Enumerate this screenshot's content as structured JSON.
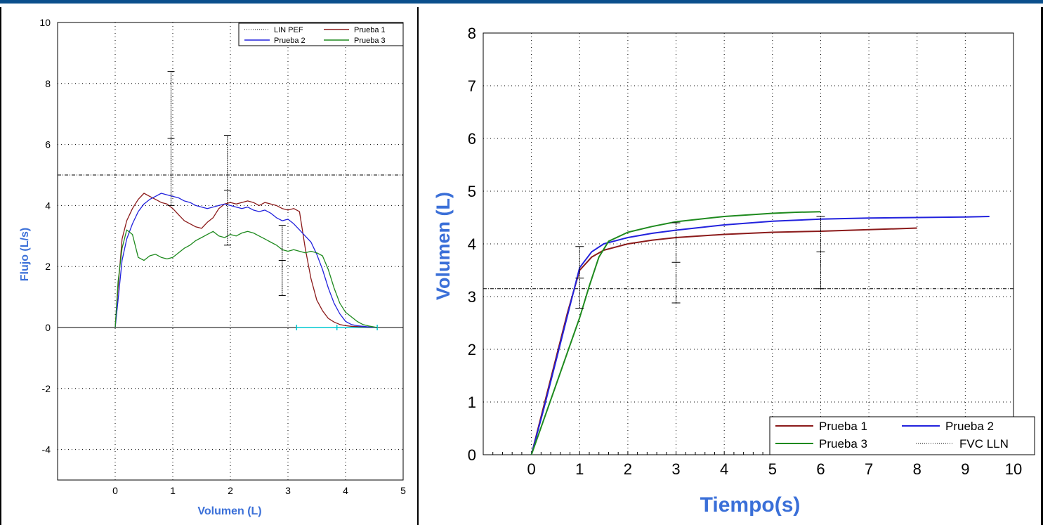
{
  "charts": {
    "flow_volume": {
      "xlabel": "Volumen (L)",
      "ylabel": "Flujo (L/s)",
      "legend": {
        "lin_pef": "LIN PEF",
        "prueba1": "Prueba 1",
        "prueba2": "Prueba 2",
        "prueba3": "Prueba 3"
      }
    },
    "volume_time": {
      "xlabel": "Tiempo(s)",
      "ylabel": "Volumen (L)",
      "legend": {
        "prueba1": "Prueba 1",
        "prueba2": "Prueba 2",
        "prueba3": "Prueba 3",
        "fvc_lln": "FVC LLN"
      }
    }
  },
  "chart_data": [
    {
      "type": "line",
      "xlabel": "Volumen (L)",
      "ylabel": "Flujo (L/s)",
      "xlim": [
        -1,
        5
      ],
      "ylim": [
        -5,
        10
      ],
      "xticks": [
        0,
        1,
        2,
        3,
        4,
        5
      ],
      "yticks": [
        -4,
        -2,
        0,
        2,
        4,
        6,
        8,
        10
      ],
      "grid": true,
      "legend_position": "top-right",
      "colors": {
        "Prueba 1": "#8b1a1a",
        "Prueba 2": "#2222dd",
        "Prueba 3": "#1e8a1e",
        "LIN PEF": "#000000"
      },
      "reference_lines": [
        {
          "name": "LIN PEF",
          "y": 5.0
        }
      ],
      "series": [
        {
          "name": "Prueba 1",
          "x": [
            0,
            0.05,
            0.12,
            0.2,
            0.3,
            0.4,
            0.5,
            0.6,
            0.7,
            0.8,
            0.9,
            1.0,
            1.1,
            1.2,
            1.3,
            1.4,
            1.5,
            1.6,
            1.7,
            1.8,
            1.9,
            2.0,
            2.1,
            2.2,
            2.3,
            2.4,
            2.5,
            2.6,
            2.7,
            2.8,
            2.9,
            3.0,
            3.1,
            3.2,
            3.3,
            3.4,
            3.5,
            3.6,
            3.7,
            3.8,
            3.9,
            4.0,
            4.1,
            4.2,
            4.3,
            4.4,
            4.55
          ],
          "y": [
            0,
            1.3,
            2.9,
            3.5,
            3.9,
            4.2,
            4.4,
            4.3,
            4.2,
            4.1,
            4.05,
            3.9,
            3.7,
            3.5,
            3.4,
            3.3,
            3.25,
            3.45,
            3.6,
            3.9,
            4.05,
            4.1,
            4.05,
            4.1,
            4.15,
            4.1,
            4.0,
            4.1,
            4.05,
            4.0,
            3.9,
            3.85,
            3.9,
            3.8,
            2.6,
            1.6,
            0.9,
            0.55,
            0.3,
            0.18,
            0.1,
            0.06,
            0.04,
            0.03,
            0.02,
            0.01,
            0
          ]
        },
        {
          "name": "Prueba 2",
          "x": [
            0,
            0.05,
            0.12,
            0.2,
            0.3,
            0.4,
            0.5,
            0.6,
            0.7,
            0.8,
            0.9,
            1.0,
            1.1,
            1.2,
            1.3,
            1.4,
            1.5,
            1.6,
            1.7,
            1.8,
            1.9,
            2.0,
            2.1,
            2.2,
            2.3,
            2.4,
            2.5,
            2.6,
            2.7,
            2.8,
            2.9,
            3.0,
            3.1,
            3.2,
            3.3,
            3.4,
            3.5,
            3.6,
            3.7,
            3.8,
            3.9,
            4.0,
            4.1,
            4.2,
            4.3,
            4.4,
            4.55
          ],
          "y": [
            0,
            0.9,
            2.2,
            2.9,
            3.4,
            3.8,
            4.05,
            4.2,
            4.3,
            4.4,
            4.35,
            4.3,
            4.25,
            4.15,
            4.1,
            4.0,
            3.95,
            3.9,
            3.95,
            4.0,
            4.05,
            4.0,
            3.95,
            3.9,
            3.95,
            3.85,
            3.8,
            3.85,
            3.75,
            3.6,
            3.5,
            3.55,
            3.4,
            3.2,
            3.0,
            2.8,
            2.4,
            1.9,
            1.3,
            0.8,
            0.45,
            0.2,
            0.1,
            0.06,
            0.04,
            0.02,
            0
          ]
        },
        {
          "name": "Prueba 3",
          "x": [
            0,
            0.05,
            0.12,
            0.2,
            0.3,
            0.4,
            0.5,
            0.6,
            0.7,
            0.8,
            0.9,
            1.0,
            1.1,
            1.2,
            1.3,
            1.4,
            1.5,
            1.6,
            1.7,
            1.8,
            1.9,
            2.0,
            2.1,
            2.2,
            2.3,
            2.4,
            2.5,
            2.6,
            2.7,
            2.8,
            2.9,
            3.0,
            3.1,
            3.2,
            3.3,
            3.4,
            3.5,
            3.6,
            3.7,
            3.8,
            3.9,
            4.0,
            4.1,
            4.2,
            4.3,
            4.4,
            4.55
          ],
          "y": [
            0,
            1.5,
            2.6,
            3.2,
            3.05,
            2.3,
            2.2,
            2.35,
            2.4,
            2.3,
            2.25,
            2.3,
            2.45,
            2.6,
            2.7,
            2.85,
            2.95,
            3.05,
            3.15,
            3.0,
            2.95,
            3.05,
            3.0,
            3.1,
            3.15,
            3.1,
            3.0,
            2.9,
            2.8,
            2.7,
            2.55,
            2.5,
            2.55,
            2.5,
            2.45,
            2.5,
            2.45,
            2.35,
            1.9,
            1.3,
            0.8,
            0.5,
            0.35,
            0.2,
            0.1,
            0.05,
            0
          ]
        }
      ],
      "error_bars": [
        {
          "x": 0.97,
          "y": 6.2,
          "low": 4.0,
          "high": 8.4
        },
        {
          "x": 1.95,
          "y": 4.5,
          "low": 2.7,
          "high": 6.3
        },
        {
          "x": 2.9,
          "y": 2.2,
          "low": 1.05,
          "high": 3.35
        }
      ],
      "baseline_markers": {
        "color": "#00c8d0",
        "y": 0,
        "x_start": 3.15,
        "x_end": 4.55,
        "ticks": [
          3.15,
          3.85,
          4.55
        ]
      }
    },
    {
      "type": "line",
      "xlabel": "Tiempo(s)",
      "ylabel": "Volumen (L)",
      "xlim": [
        -1,
        10
      ],
      "ylim": [
        0,
        8
      ],
      "xticks": [
        0,
        1,
        2,
        3,
        4,
        5,
        6,
        7,
        8,
        9,
        10
      ],
      "yticks": [
        0,
        1,
        2,
        3,
        4,
        5,
        6,
        7,
        8
      ],
      "grid": true,
      "legend_position": "bottom-right",
      "colors": {
        "Prueba 1": "#8b1a1a",
        "Prueba 2": "#2222dd",
        "Prueba 3": "#1e8a1e",
        "FVC LLN": "#000000"
      },
      "reference_lines": [
        {
          "name": "FVC LLN",
          "y": 3.15
        }
      ],
      "series": [
        {
          "name": "Prueba 1",
          "x": [
            0,
            0.25,
            0.5,
            0.75,
            1.0,
            1.25,
            1.5,
            2.0,
            2.5,
            3.0,
            4.0,
            5.0,
            6.0,
            7.0,
            8.0
          ],
          "y": [
            0,
            0.9,
            1.8,
            2.7,
            3.5,
            3.75,
            3.88,
            4.0,
            4.07,
            4.12,
            4.18,
            4.22,
            4.24,
            4.27,
            4.3
          ]
        },
        {
          "name": "Prueba 2",
          "x": [
            0,
            0.25,
            0.5,
            0.75,
            1.0,
            1.25,
            1.5,
            2.0,
            2.5,
            3.0,
            4.0,
            5.0,
            6.0,
            7.0,
            8.0,
            9.0,
            9.5
          ],
          "y": [
            0,
            0.85,
            1.75,
            2.65,
            3.55,
            3.85,
            4.0,
            4.12,
            4.2,
            4.26,
            4.36,
            4.43,
            4.47,
            4.49,
            4.5,
            4.51,
            4.52
          ]
        },
        {
          "name": "Prueba 3",
          "x": [
            0,
            0.25,
            0.5,
            0.75,
            1.0,
            1.2,
            1.4,
            1.6,
            2.0,
            2.5,
            3.0,
            4.0,
            5.0,
            5.5,
            6.0
          ],
          "y": [
            0,
            0.65,
            1.3,
            1.95,
            2.6,
            3.2,
            3.75,
            4.05,
            4.22,
            4.33,
            4.42,
            4.52,
            4.58,
            4.6,
            4.61
          ]
        }
      ],
      "error_bars": [
        {
          "x": 1.0,
          "y": 3.35,
          "low": 2.78,
          "high": 3.95
        },
        {
          "x": 3.0,
          "y": 3.65,
          "low": 2.88,
          "high": 4.4
        },
        {
          "x": 6.0,
          "y": 3.85,
          "low": 3.15,
          "high": 4.52
        }
      ]
    }
  ]
}
